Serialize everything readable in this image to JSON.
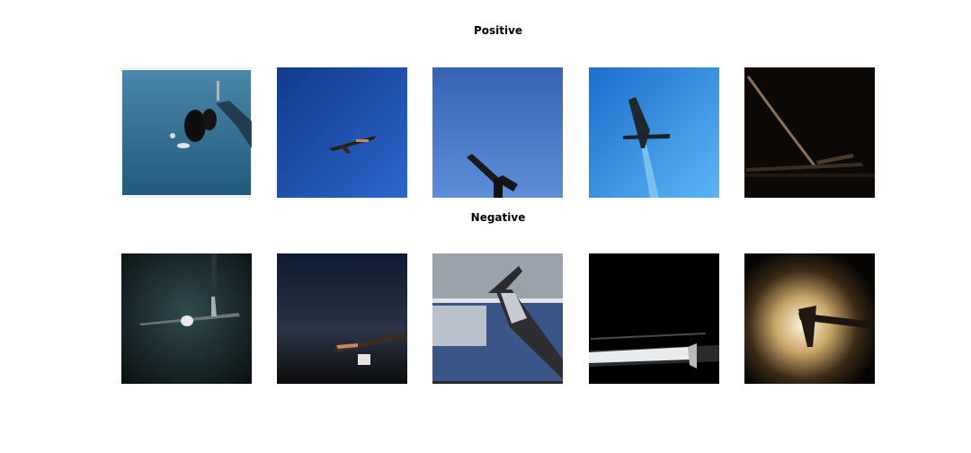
{
  "rows": [
    {
      "title": "Positive",
      "images": [
        {
          "subject": "airplane-photo",
          "background": "#2f6f95"
        },
        {
          "subject": "airplane-photo",
          "background": "#1e4fb0"
        },
        {
          "subject": "airplane-photo",
          "background": "#3f72c4"
        },
        {
          "subject": "airplane-photo",
          "background": "#3a94e4"
        },
        {
          "subject": "airplane-photo",
          "background": "#0c0805"
        }
      ]
    },
    {
      "title": "Negative",
      "images": [
        {
          "subject": "airplane-photo",
          "background": "#1d2a2c"
        },
        {
          "subject": "airplane-photo",
          "background": "#1a2233"
        },
        {
          "subject": "airplane-photo",
          "background": "#6f7f95"
        },
        {
          "subject": "airplane-photo",
          "background": "#000000"
        },
        {
          "subject": "airplane-photo",
          "background": "#2a1a0c"
        }
      ]
    }
  ]
}
